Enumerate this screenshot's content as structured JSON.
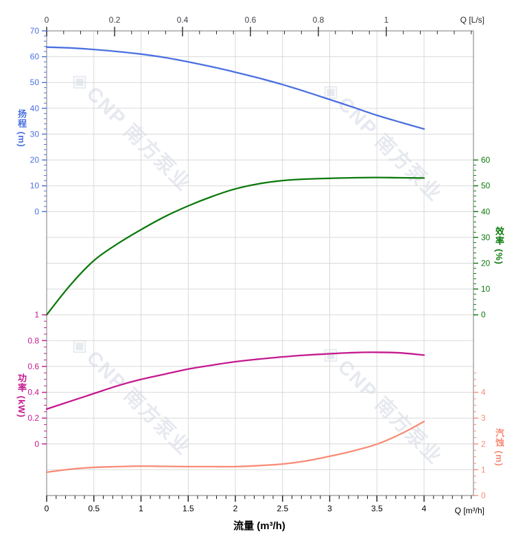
{
  "watermark": {
    "logo": "◈",
    "text": "CNP 南方泵业"
  },
  "corner_labels": {
    "top_unit": "Q [L/s]",
    "bottom_unit": "Q [m³/h]"
  },
  "bottom_axis_title": "流量 (m³/h)",
  "axes": {
    "flow_top": {
      "labels": [
        "0",
        "0.2",
        "0.4",
        "0.6",
        "0.8",
        "1"
      ],
      "values": [
        0,
        0.2,
        0.4,
        0.6,
        0.8,
        1
      ],
      "minor_step": 0.05,
      "minor_max": 1.25,
      "tick_color": "#2a2a2a",
      "label_color": "#3f3f48"
    },
    "flow_bottom": {
      "labels": [
        "0",
        "0.5",
        "1",
        "1.5",
        "2",
        "2.5",
        "3",
        "3.5",
        "4"
      ],
      "values": [
        0,
        0.5,
        1,
        1.5,
        2,
        2.5,
        3,
        3.5,
        4
      ],
      "minor_step": 0.1,
      "minor_max": 4.5,
      "tick_color": "#1a1a1a",
      "label_color": "#000000"
    },
    "head": {
      "title": "扬程 (m)",
      "labels": [
        "70",
        "60",
        "50",
        "40",
        "30",
        "20",
        "10",
        "0"
      ],
      "values": [
        70,
        60,
        50,
        40,
        30,
        20,
        10,
        0
      ],
      "minor_step": 2,
      "minor_max": 70,
      "color": "#4a70e0"
    },
    "efficiency": {
      "title": "效率 (%)",
      "labels": [
        "60",
        "50",
        "40",
        "30",
        "20",
        "10",
        "0"
      ],
      "values": [
        60,
        50,
        40,
        30,
        20,
        10,
        0
      ],
      "minor_step": 2,
      "minor_max": 60,
      "color": "#0b790b"
    },
    "power": {
      "title": "功率 (kW)",
      "labels": [
        "1",
        "0.8",
        "0.6",
        "0.4",
        "0.2",
        "0"
      ],
      "values": [
        1,
        0.8,
        0.6,
        0.4,
        0.2,
        0
      ],
      "minor_step": 0.05,
      "minor_max": 1,
      "color": "#c4188e"
    },
    "npsh": {
      "title": "汽蚀 (m)",
      "labels": [
        "4",
        "3",
        "2",
        "1",
        "0"
      ],
      "values": [
        4,
        3,
        2,
        1,
        0
      ],
      "minor_step": 0.25,
      "minor_max": 4.75,
      "color": "#f98b76"
    }
  },
  "chart_data": {
    "type": "line",
    "title": "",
    "xlabel": "流量 (m³/h)",
    "x_units": {
      "bottom": "m³/h",
      "top": "L/s",
      "ls_per_m3h": 0.2778
    },
    "x": [
      0,
      0.25,
      0.5,
      0.75,
      1,
      1.25,
      1.5,
      1.75,
      2,
      2.25,
      2.5,
      2.75,
      3,
      3.25,
      3.5,
      3.75,
      4
    ],
    "x_range_bottom": [
      0,
      4.524
    ],
    "x_range_top": [
      0,
      1.257
    ],
    "grid": {
      "vertical_step_m3h": 0.5,
      "horizontal_rows": 18
    },
    "series": [
      {
        "name": "扬程",
        "unit": "m",
        "axis": "head",
        "color": "#4a70e0",
        "ylim": [
          0,
          70
        ],
        "values": [
          63.7,
          63.4,
          62.8,
          62.0,
          61.0,
          59.7,
          58.0,
          56.1,
          54.0,
          51.7,
          49.2,
          46.4,
          43.4,
          40.4,
          37.3,
          34.6,
          32.0
        ]
      },
      {
        "name": "效率",
        "unit": "%",
        "axis": "efficiency",
        "color": "#0b790b",
        "ylim": [
          0,
          60
        ],
        "values": [
          0,
          11.5,
          21,
          27.5,
          33,
          38,
          42.2,
          45.8,
          48.8,
          50.8,
          52.0,
          52.6,
          52.9,
          53.1,
          53.2,
          53.1,
          53.0
        ]
      },
      {
        "name": "功率",
        "unit": "kW",
        "axis": "power",
        "color": "#c4188e",
        "ylim": [
          0,
          1
        ],
        "values": [
          0.27,
          0.33,
          0.39,
          0.45,
          0.5,
          0.54,
          0.58,
          0.61,
          0.637,
          0.657,
          0.674,
          0.688,
          0.698,
          0.707,
          0.71,
          0.705,
          0.688
        ]
      },
      {
        "name": "汽蚀",
        "unit": "m",
        "axis": "npsh",
        "color": "#f98b76",
        "ylim": [
          0,
          4
        ],
        "values": [
          0.9,
          1.02,
          1.09,
          1.12,
          1.14,
          1.13,
          1.12,
          1.12,
          1.12,
          1.16,
          1.22,
          1.34,
          1.52,
          1.73,
          1.99,
          2.38,
          2.87
        ]
      }
    ]
  }
}
